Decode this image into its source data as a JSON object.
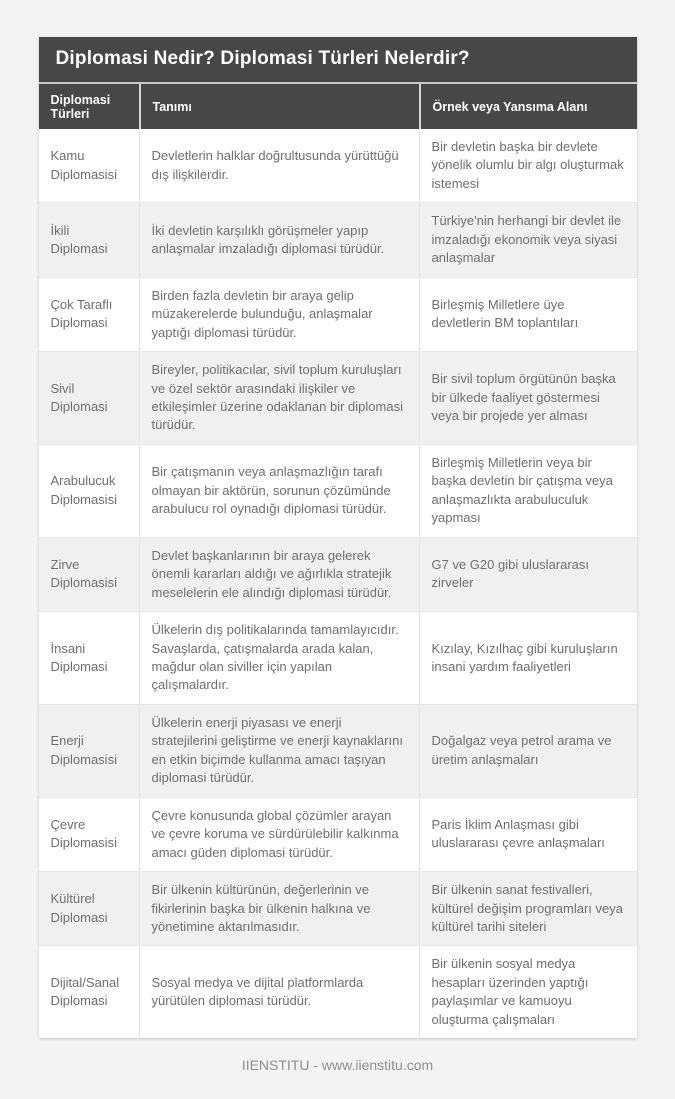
{
  "page": {
    "title": "Diplomasi Nedir? Diplomasi Türleri Nelerdir?",
    "footer": "IIENSTITU - www.iienstitu.com"
  },
  "colors": {
    "header_bg": "#474747",
    "header_text": "#ffffff",
    "row_alt_bg": "#f0f0ee",
    "body_text": "#6f6f6f",
    "page_bg": "#f3f3f1"
  },
  "table": {
    "columns": [
      "Diplomasi Türleri",
      "Tanımı",
      "Örnek veya Yansıma Alanı"
    ],
    "rows": [
      {
        "type": "Kamu Diplomasisi",
        "definition": "Devletlerin halklar doğrultusunda yürüttüğü dış ilişkilerdir.",
        "example": "Bir devletin başka bir devlete yönelik olumlu bir algı oluşturmak istemesi"
      },
      {
        "type": "İkili Diplomasi",
        "definition": "İki devletin karşılıklı görüşmeler yapıp anlaşmalar imzaladığı diplomasi türüdür.",
        "example": "Türkiye'nin herhangi bir devlet ile imzaladığı ekonomik veya siyasi anlaşmalar"
      },
      {
        "type": "Çok Taraflı Diplomasi",
        "definition": "Birden fazla devletin bir araya gelip müzakerelerde bulunduğu, anlaşmalar yaptığı diplomasi türüdür.",
        "example": "Birleşmiş Milletlere üye devletlerin BM toplantıları"
      },
      {
        "type": "Sivil Diplomasi",
        "definition": "Bireyler, politikacılar, sivil toplum kuruluşları ve özel sektör arasındaki ilişkiler ve etkileşimler üzerine odaklanan bir diplomasi türüdür.",
        "example": "Bir sivil toplum örgütünün başka bir ülkede faaliyet göstermesi veya bir projede yer alması"
      },
      {
        "type": "Arabulucuk Diplomasisi",
        "definition": "Bir çatışmanın veya anlaşmazlığın tarafı olmayan bir aktörün, sorunun çözümünde arabulucu rol oynadığı diplomasi türüdür.",
        "example": "Birleşmiş Milletlerin veya bir başka devletin bir çatışma veya anlaşmazlıkta arabuluculuk yapması"
      },
      {
        "type": "Zirve Diplomasisi",
        "definition": "Devlet başkanlarının bir araya gelerek önemli kararları aldığı ve ağırlıkla stratejik meselelerin ele alındığı diplomasi türüdür.",
        "example": "G7 ve G20 gibi uluslararası zirveler"
      },
      {
        "type": "İnsani Diplomasi",
        "definition": "Ülkelerin dış politikalarında tamamlayıcıdır. Savaşlarda, çatışmalarda arada kalan, mağdur olan siviller için yapılan çalışmalardır.",
        "example": "Kızılay, Kızılhaç gibi kuruluşların insani yardım faaliyetleri"
      },
      {
        "type": "Enerji Diplomasisi",
        "definition": "Ülkelerin enerji piyasası ve enerji stratejilerini geliştirme ve enerji kaynaklarını en etkin biçimde kullanma amacı taşıyan diplomasi türüdür.",
        "example": "Doğalgaz veya petrol arama ve üretim anlaşmaları"
      },
      {
        "type": "Çevre Diplomasisi",
        "definition": "Çevre konusunda global çözümler arayan ve çevre koruma ve sürdürülebilir kalkınma amacı güden diplomasi türüdür.",
        "example": "Paris İklim Anlaşması gibi uluslararası çevre anlaşmaları"
      },
      {
        "type": "Kültürel Diplomasi",
        "definition": "Bir ülkenin kültürünün, değerlerinin ve fikirlerinin başka bir ülkenin halkına ve yönetimine aktarılmasıdır.",
        "example": "Bir ülkenin sanat festivalleri, kültürel değişim programları veya kültürel tarihi siteleri"
      },
      {
        "type": "Dijital/Sanal Diplomasi",
        "definition": "Sosyal medya ve dijital platformlarda yürütülen diplomasi türüdür.",
        "example": "Bir ülkenin sosyal medya hesapları üzerinden yaptığı paylaşımlar ve kamuoyu oluşturma çalışmaları"
      }
    ]
  }
}
